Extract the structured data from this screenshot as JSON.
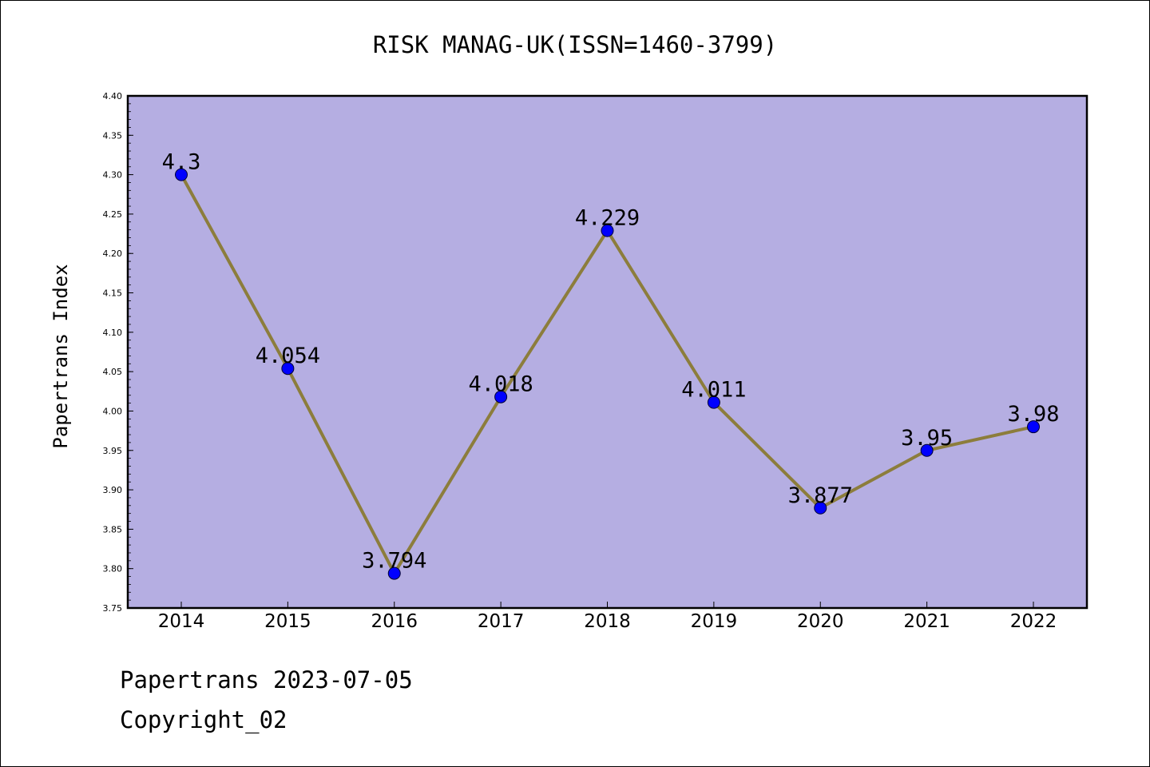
{
  "chart_data": {
    "type": "line",
    "title": "RISK MANAG-UK(ISSN=1460-3799)",
    "ylabel": "Papertrans Index",
    "xlabel": "",
    "categories": [
      "2014",
      "2015",
      "2016",
      "2017",
      "2018",
      "2019",
      "2020",
      "2021",
      "2022"
    ],
    "values": [
      4.3,
      4.054,
      3.794,
      4.018,
      4.229,
      4.011,
      3.877,
      3.95,
      3.98
    ],
    "data_labels": [
      "4.3",
      "4.054",
      "3.794",
      "4.018",
      "4.229",
      "4.011",
      "3.877",
      "3.95",
      "3.98"
    ],
    "ylim": [
      3.75,
      4.4
    ],
    "y_ticks": [
      3.75,
      3.8,
      3.85,
      3.9,
      3.95,
      4.0,
      4.05,
      4.1,
      4.15,
      4.2,
      4.25,
      4.3,
      4.35,
      4.4
    ],
    "y_tick_labels": [
      "3.75",
      "3.80",
      "3.85",
      "3.90",
      "3.95",
      "4.00",
      "4.05",
      "4.10",
      "4.15",
      "4.20",
      "4.25",
      "4.30",
      "4.35",
      "4.40"
    ],
    "grid": false,
    "legend": "none",
    "colors": {
      "plot_background": "#b5aee2",
      "line": "#8c7d3c",
      "marker": "#0000ff"
    }
  },
  "footer": {
    "date_text": "Papertrans 2023-07-05",
    "copyright_text": "Copyright_02"
  }
}
